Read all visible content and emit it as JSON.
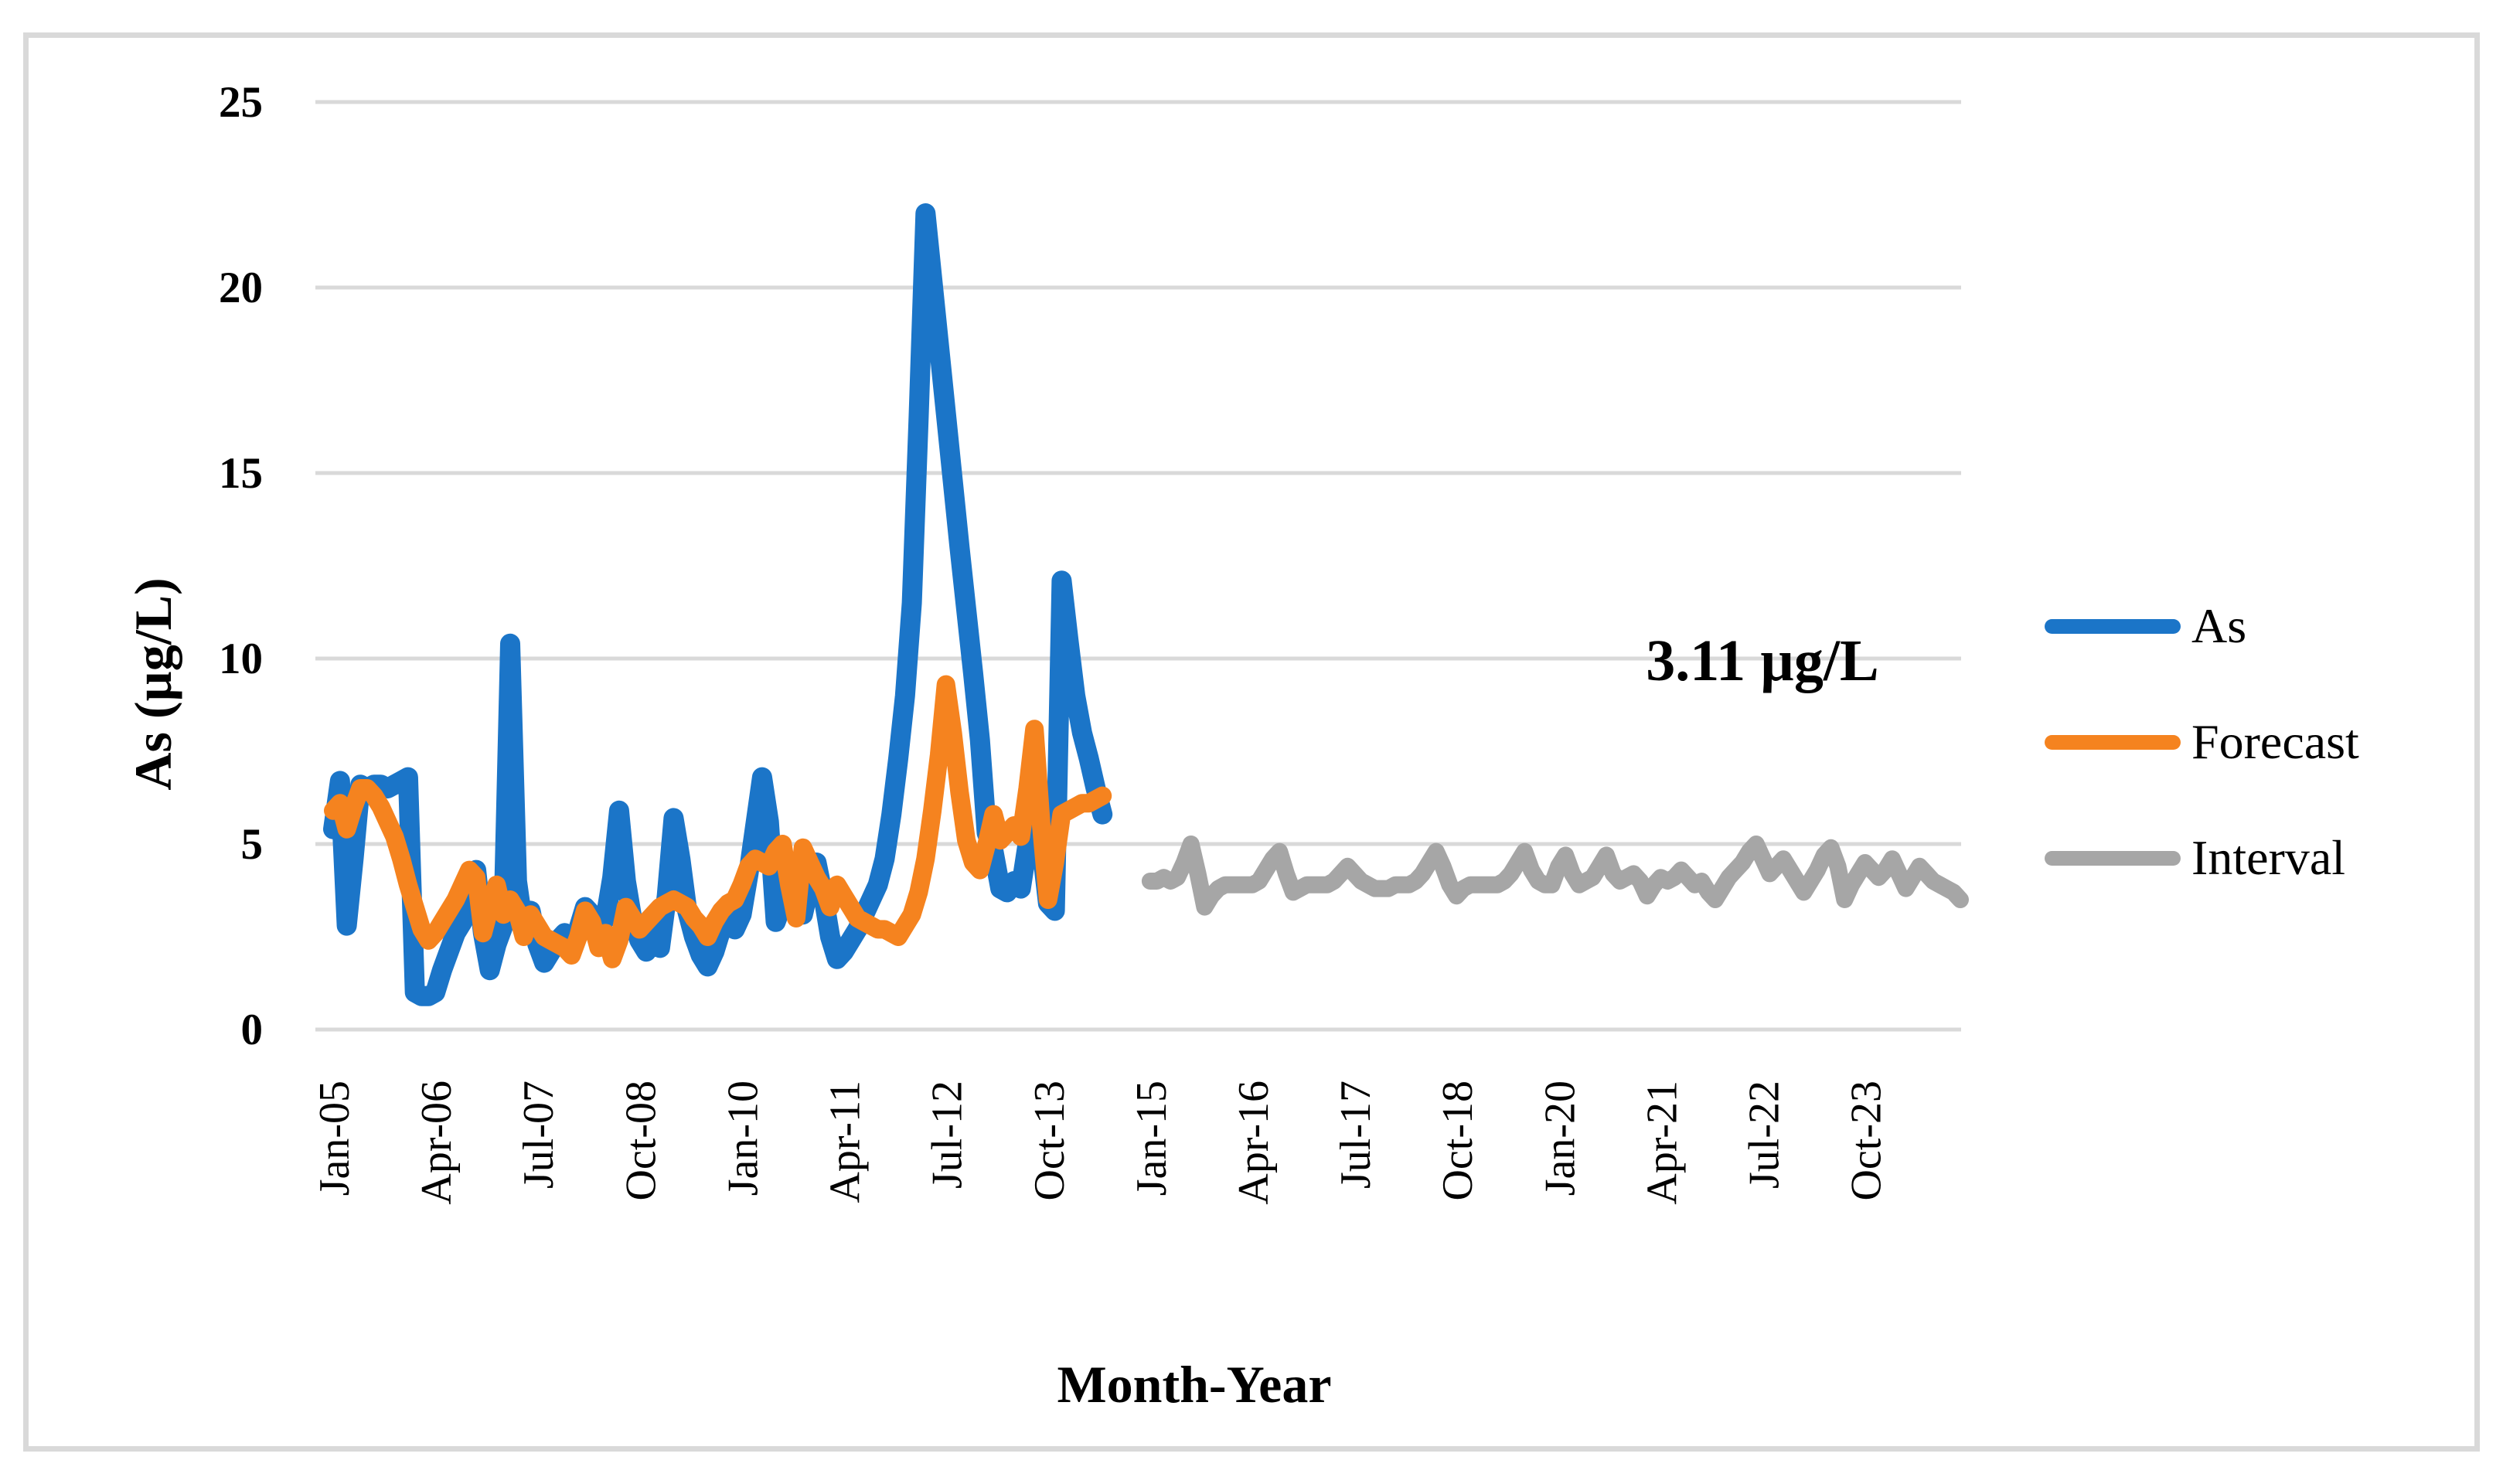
{
  "chart_data": {
    "type": "line",
    "title": "",
    "xlabel": "Month-Year",
    "ylabel": "As (µg/L)",
    "annotation": "3.11 µg/L",
    "ylim": [
      0,
      25
    ],
    "y_ticks": [
      0,
      5,
      10,
      15,
      20,
      25
    ],
    "x_tick_labels": [
      "Jan-05",
      "Apr-06",
      "Jul-07",
      "Oct-08",
      "Jan-10",
      "Apr-11",
      "Jul-12",
      "Oct-13",
      "Jan-15",
      "Apr-16",
      "Jul-17",
      "Oct-18",
      "Jan-20",
      "Apr-21",
      "Jul-22",
      "Oct-23"
    ],
    "x_tick_interval_months": 15,
    "x_range": "Jan-2005 to Dec-2024",
    "frequency": "monthly",
    "grid": "horizontal",
    "legend_position": "right",
    "series": [
      {
        "name": "As",
        "color": "#1B75C8",
        "start": "Jan-2005",
        "start_month_index": 0,
        "values": [
          5.4,
          6.7,
          2.8,
          4.6,
          6.6,
          6.5,
          6.6,
          6.6,
          6.5,
          6.6,
          6.7,
          6.8,
          1.0,
          0.9,
          0.9,
          1.0,
          1.6,
          2.1,
          2.6,
          2.9,
          3.7,
          4.3,
          2.6,
          1.6,
          2.3,
          2.8,
          10.4,
          4.0,
          2.7,
          3.2,
          2.3,
          1.8,
          2.1,
          2.4,
          2.6,
          2.3,
          2.7,
          3.3,
          3.1,
          2.7,
          3.0,
          4.1,
          5.9,
          4.0,
          2.9,
          2.4,
          2.1,
          2.5,
          2.2,
          3.6,
          5.7,
          4.6,
          3.2,
          2.5,
          2.0,
          1.7,
          2.1,
          2.7,
          2.9,
          2.7,
          3.1,
          4.2,
          5.5,
          6.8,
          5.6,
          2.9,
          3.4,
          4.0,
          3.3,
          3.1,
          3.9,
          4.5,
          3.6,
          2.5,
          1.9,
          2.1,
          2.4,
          2.7,
          3.1,
          3.5,
          3.9,
          4.6,
          5.8,
          7.3,
          9.0,
          11.5,
          16.5,
          22.0,
          20.2,
          18.4,
          16.6,
          14.8,
          13.0,
          11.3,
          9.6,
          7.8,
          5.3,
          4.8,
          3.8,
          3.7,
          4.0,
          3.8,
          5.0,
          6.3,
          5.0,
          3.4,
          3.2,
          12.1,
          10.5,
          9.0,
          8.0,
          7.3,
          6.5,
          5.8
        ]
      },
      {
        "name": "Forecast",
        "color": "#F5831F",
        "start": "Jan-2005",
        "start_month_index": 0,
        "values": [
          5.9,
          6.1,
          5.4,
          6.0,
          6.5,
          6.5,
          6.3,
          6.0,
          5.6,
          5.2,
          4.6,
          3.9,
          3.3,
          2.7,
          2.4,
          2.6,
          2.9,
          3.2,
          3.5,
          3.9,
          4.3,
          4.1,
          2.6,
          3.3,
          3.9,
          3.1,
          3.5,
          3.2,
          2.5,
          3.1,
          2.8,
          2.5,
          2.4,
          2.3,
          2.2,
          2.0,
          2.5,
          3.2,
          2.9,
          2.2,
          2.6,
          1.9,
          2.4,
          3.3,
          3.0,
          2.7,
          2.9,
          3.1,
          3.3,
          3.4,
          3.5,
          3.4,
          3.3,
          3.0,
          2.8,
          2.5,
          2.9,
          3.2,
          3.4,
          3.5,
          3.9,
          4.4,
          4.6,
          4.5,
          4.4,
          4.8,
          5.0,
          3.9,
          3.0,
          4.9,
          4.5,
          4.1,
          3.8,
          3.3,
          3.9,
          3.6,
          3.3,
          3.0,
          2.9,
          2.8,
          2.7,
          2.7,
          2.6,
          2.5,
          2.8,
          3.1,
          3.7,
          4.6,
          5.9,
          7.4,
          9.3,
          8.0,
          6.4,
          5.1,
          4.5,
          4.3,
          5.0,
          5.8,
          5.1,
          5.3,
          5.5,
          5.2,
          6.5,
          8.1,
          5.5,
          3.5,
          4.5,
          5.8,
          5.9,
          6.0,
          6.1,
          6.1,
          6.2,
          6.3
        ]
      },
      {
        "name": "Interval",
        "color": "#A6A6A6",
        "start": "Jan-2015",
        "start_month_index": 120,
        "values": [
          4.0,
          4.0,
          4.1,
          4.0,
          4.1,
          4.5,
          5.0,
          4.2,
          3.3,
          3.6,
          3.8,
          3.9,
          3.9,
          3.9,
          3.9,
          3.9,
          4.0,
          4.3,
          4.6,
          4.8,
          4.2,
          3.7,
          3.8,
          3.9,
          3.9,
          3.9,
          3.9,
          4.0,
          4.2,
          4.4,
          4.2,
          4.0,
          3.9,
          3.8,
          3.8,
          3.8,
          3.9,
          3.9,
          3.9,
          4.0,
          4.2,
          4.5,
          4.8,
          4.4,
          3.9,
          3.6,
          3.8,
          3.9,
          3.9,
          3.9,
          3.9,
          3.9,
          4.0,
          4.2,
          4.5,
          4.8,
          4.3,
          4.0,
          3.9,
          3.9,
          4.4,
          4.7,
          4.2,
          3.9,
          4.0,
          4.1,
          4.4,
          4.7,
          4.2,
          4.0,
          4.1,
          4.2,
          4.0,
          3.6,
          3.9,
          4.1,
          4.0,
          4.1,
          4.3,
          4.1,
          3.9,
          4.0,
          3.7,
          3.5,
          3.8,
          4.1,
          4.3,
          4.5,
          4.8,
          5.0,
          4.6,
          4.2,
          4.4,
          4.6,
          4.3,
          4.0,
          3.7,
          4.0,
          4.3,
          4.7,
          4.9,
          4.4,
          3.5,
          3.9,
          4.2,
          4.5,
          4.3,
          4.1,
          4.3,
          4.6,
          4.2,
          3.8,
          4.1,
          4.4,
          4.2,
          4.0,
          3.9,
          3.8,
          3.7,
          3.5
        ]
      }
    ],
    "colors": {
      "gridline": "#D9D9D9",
      "frame": "#D9D9D9",
      "text": "#000000"
    }
  }
}
